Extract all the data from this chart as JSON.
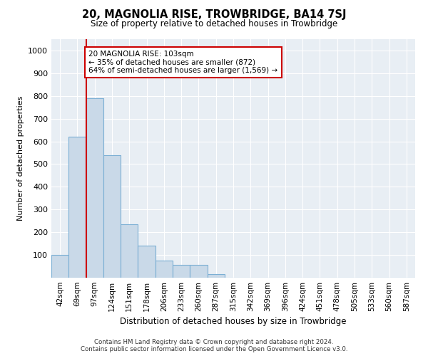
{
  "title": "20, MAGNOLIA RISE, TROWBRIDGE, BA14 7SJ",
  "subtitle": "Size of property relative to detached houses in Trowbridge",
  "xlabel": "Distribution of detached houses by size in Trowbridge",
  "ylabel": "Number of detached properties",
  "categories": [
    "42sqm",
    "69sqm",
    "97sqm",
    "124sqm",
    "151sqm",
    "178sqm",
    "206sqm",
    "233sqm",
    "260sqm",
    "287sqm",
    "315sqm",
    "342sqm",
    "369sqm",
    "396sqm",
    "424sqm",
    "451sqm",
    "478sqm",
    "505sqm",
    "533sqm",
    "560sqm",
    "587sqm"
  ],
  "values": [
    100,
    620,
    790,
    540,
    235,
    140,
    75,
    55,
    55,
    15,
    0,
    0,
    0,
    0,
    0,
    0,
    0,
    0,
    0,
    0,
    0
  ],
  "bar_color": "#c9d9e8",
  "bar_edge_color": "#7bafd4",
  "bar_width": 1.0,
  "property_line_index": 2,
  "property_line_color": "#cc0000",
  "annotation_text": "20 MAGNOLIA RISE: 103sqm\n← 35% of detached houses are smaller (872)\n64% of semi-detached houses are larger (1,569) →",
  "annotation_box_color": "#cc0000",
  "ylim": [
    0,
    1050
  ],
  "yticks": [
    0,
    100,
    200,
    300,
    400,
    500,
    600,
    700,
    800,
    900,
    1000
  ],
  "background_color": "#e8eef4",
  "footer_line1": "Contains HM Land Registry data © Crown copyright and database right 2024.",
  "footer_line2": "Contains public sector information licensed under the Open Government Licence v3.0."
}
